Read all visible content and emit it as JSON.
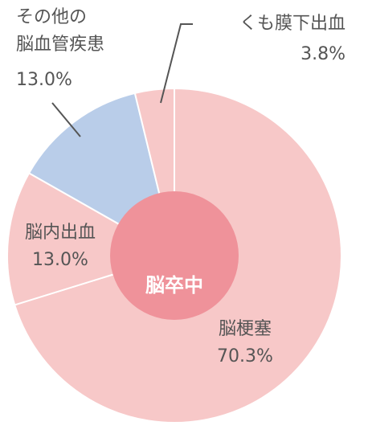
{
  "chart_data": {
    "type": "pie",
    "center_label": "脳卒中",
    "categories": [
      "脳梗塞",
      "脳内出血",
      "その他の\n脳血管疾患",
      "くも膜下出血"
    ],
    "values": [
      70.3,
      13.0,
      13.0,
      3.8
    ],
    "value_labels": [
      "70.3%",
      "13.0%",
      "13.0%",
      "3.8%"
    ],
    "colors": [
      "#f7c8c8",
      "#f7c8c8",
      "#b9cde9",
      "#f7c8c8"
    ],
    "center_color": "#ef929a"
  }
}
